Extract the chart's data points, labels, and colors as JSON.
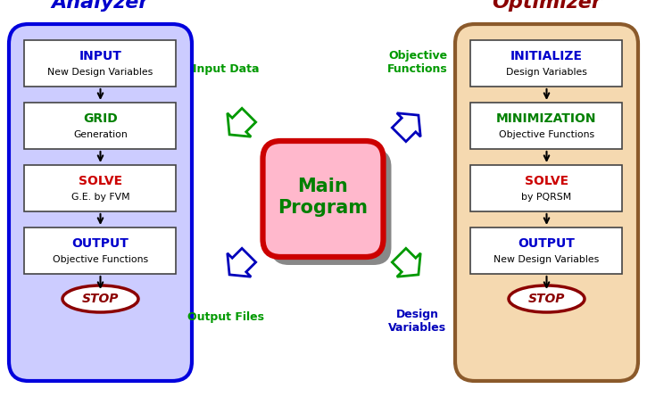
{
  "title_left": "Analyzer",
  "title_right": "Optimizer",
  "title_left_color": "#0000CC",
  "title_right_color": "#8B0000",
  "left_panel_bg": "#CCCCFF",
  "left_panel_border": "#0000DD",
  "right_panel_bg": "#F5D9B0",
  "right_panel_border": "#8B5A2B",
  "left_boxes": [
    {
      "label1": "INPUT",
      "label1_color": "#0000CC",
      "label2": "New Design Variables",
      "bg": "#FFFFFF"
    },
    {
      "label1": "GRID",
      "label1_color": "#008000",
      "label2": "Generation",
      "bg": "#FFFFFF"
    },
    {
      "label1": "SOLVE",
      "label1_color": "#CC0000",
      "label2": "G.E. by FVM",
      "bg": "#FFFFFF"
    },
    {
      "label1": "OUTPUT",
      "label1_color": "#0000CC",
      "label2": "Objective Functions",
      "bg": "#FFFFFF"
    }
  ],
  "right_boxes": [
    {
      "label1": "INITIALIZE",
      "label1_color": "#0000CC",
      "label2": "Design Variables",
      "bg": "#FFFFFF"
    },
    {
      "label1": "MINIMIZATION",
      "label1_color": "#008000",
      "label2": "Objective Functions",
      "bg": "#FFFFFF"
    },
    {
      "label1": "SOLVE",
      "label1_color": "#CC0000",
      "label2": "by PQRSM",
      "bg": "#FFFFFF"
    },
    {
      "label1": "OUTPUT",
      "label1_color": "#0000CC",
      "label2": "New Design Variables",
      "bg": "#FFFFFF"
    }
  ],
  "stop_bg": "#FFFFFF",
  "stop_border": "#8B0000",
  "stop_color": "#8B0000",
  "main_program_bg": "#FFB8CC",
  "main_program_border": "#CC0000",
  "main_program_shadow": "#888888",
  "main_program_text_color": "#008000",
  "arrow_tl_color_face": "#FFFFFF",
  "arrow_tl_color_edge": "#009900",
  "arrow_tr_color_face": "#FFFFFF",
  "arrow_tr_color_edge": "#0000BB",
  "arrow_bl_color_face": "#FFFFFF",
  "arrow_bl_color_edge": "#0000BB",
  "arrow_br_color_face": "#FFFFFF",
  "arrow_br_color_edge": "#009900",
  "label_input_data": "Input Data",
  "label_obj_func": "Objective\nFunctions",
  "label_output_files": "Output Files",
  "label_design_var": "Design\nVariables",
  "label_color_green": "#009900",
  "label_color_blue": "#0000BB",
  "fig_w": 7.25,
  "fig_h": 4.45,
  "dpi": 100
}
